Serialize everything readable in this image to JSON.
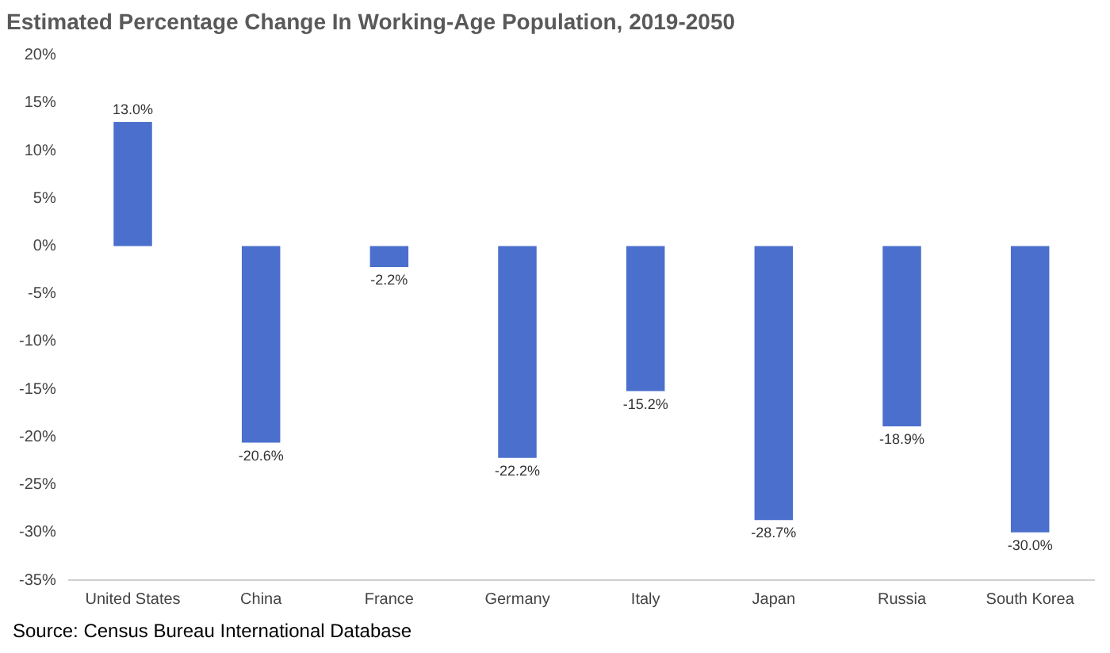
{
  "chart_data": {
    "type": "bar",
    "title": "Estimated Percentage Change In Working-Age Population, 2019-2050",
    "categories": [
      "United States",
      "China",
      "France",
      "Germany",
      "Italy",
      "Japan",
      "Russia",
      "South Korea"
    ],
    "values": [
      13.0,
      -20.6,
      -2.2,
      -22.2,
      -15.2,
      -28.7,
      -18.9,
      -30.0
    ],
    "value_labels": [
      "13.0%",
      "-20.6%",
      "-2.2%",
      "-22.2%",
      "-15.2%",
      "-28.7%",
      "-18.9%",
      "-30.0%"
    ],
    "color": "#4a6fcc",
    "grid": false,
    "ylim": [
      -35,
      20
    ],
    "yticks": [
      {
        "value": -35,
        "label": "-35%"
      },
      {
        "value": -30,
        "label": "-30%"
      },
      {
        "value": -25,
        "label": "-25%"
      },
      {
        "value": -20,
        "label": "-20%"
      },
      {
        "value": -15,
        "label": "-15%"
      },
      {
        "value": -10,
        "label": "-10%"
      },
      {
        "value": -5,
        "label": "-5%"
      },
      {
        "value": 0,
        "label": "0%"
      },
      {
        "value": 5,
        "label": "5%"
      },
      {
        "value": 10,
        "label": "10%"
      },
      {
        "value": 15,
        "label": "15%"
      },
      {
        "value": 20,
        "label": "20%"
      }
    ],
    "annotations": [
      "Source: Census Bureau International Database"
    ]
  }
}
